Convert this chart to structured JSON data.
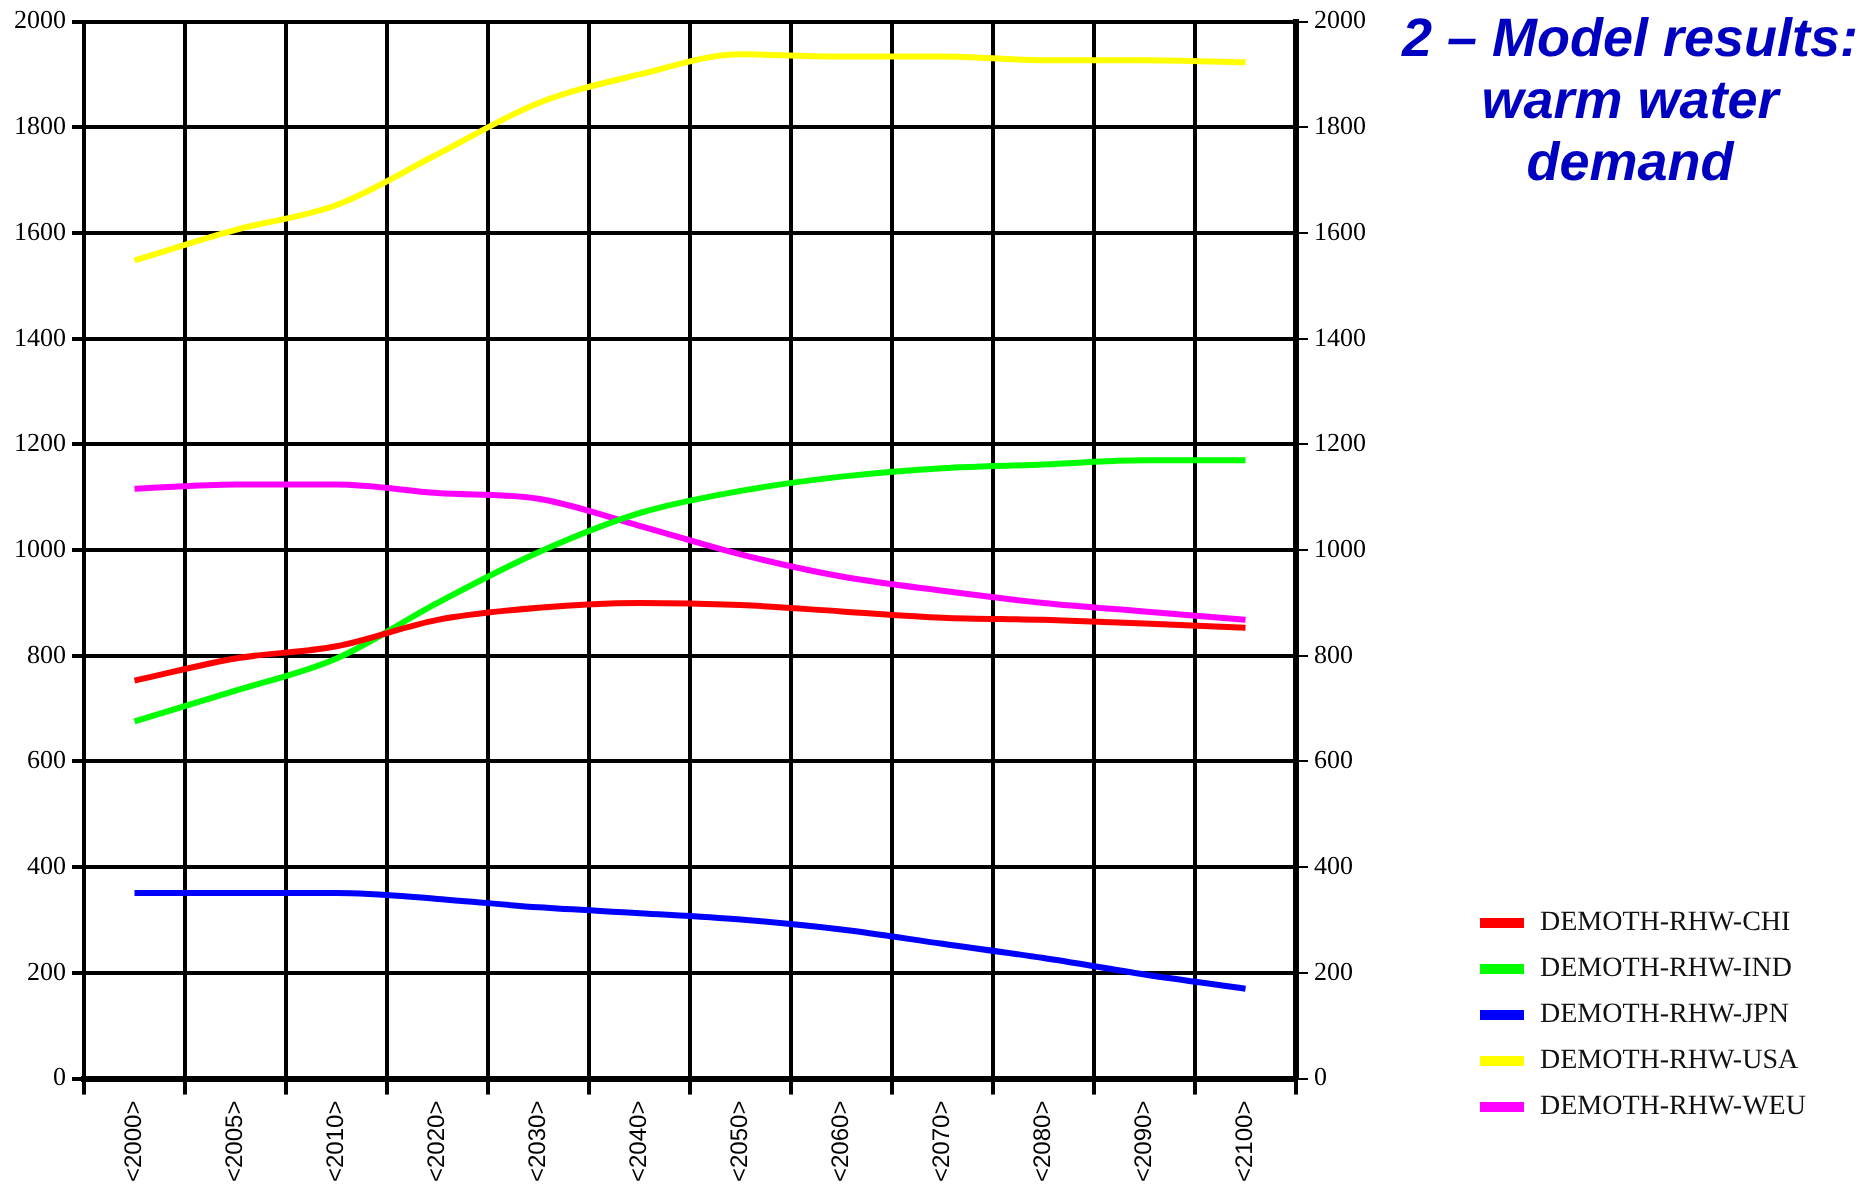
{
  "chart_data": {
    "type": "line",
    "title": "2 – Model results: warm water demand",
    "categories": [
      "<2000>",
      "<2005>",
      "<2010>",
      "<2020>",
      "<2030>",
      "<2040>",
      "<2050>",
      "<2060>",
      "<2070>",
      "<2080>",
      "<2090>",
      "<2100>"
    ],
    "series": [
      {
        "name": "DEMOTH-RHW-CHI",
        "color": "#ff0000",
        "values": [
          753,
          795,
          818,
          868,
          891,
          900,
          896,
          884,
          872,
          868,
          861,
          853
        ]
      },
      {
        "name": "DEMOTH-RHW-IND",
        "color": "#00ff00",
        "values": [
          676,
          734,
          795,
          900,
          996,
          1070,
          1112,
          1139,
          1155,
          1162,
          1170,
          1170
        ]
      },
      {
        "name": "DEMOTH-RHW-JPN",
        "color": "#0000ff",
        "values": [
          351,
          351,
          351,
          340,
          324,
          313,
          301,
          282,
          255,
          228,
          197,
          170
        ]
      },
      {
        "name": "DEMOTH-RHW-USA",
        "color": "#ffff00",
        "values": [
          1548,
          1606,
          1653,
          1749,
          1846,
          1900,
          1938,
          1934,
          1934,
          1927,
          1927,
          1923
        ]
      },
      {
        "name": "DEMOTH-RHW-WEU",
        "color": "#ff00ff",
        "values": [
          1116,
          1124,
          1124,
          1108,
          1097,
          1046,
          992,
          950,
          923,
          900,
          884,
          868
        ]
      }
    ],
    "ylim": [
      0,
      2000
    ],
    "yticks": [
      0,
      200,
      400,
      600,
      800,
      1000,
      1200,
      1400,
      1600,
      1800,
      2000
    ],
    "y2lim": [
      0,
      2000
    ],
    "y2ticks": [
      0,
      200,
      400,
      600,
      800,
      1000,
      1200,
      1400,
      1600,
      1800,
      2000
    ],
    "grid": true,
    "legend": "bottom right",
    "marker": "none",
    "line_style": "solid"
  }
}
